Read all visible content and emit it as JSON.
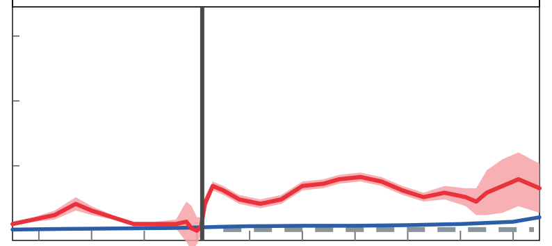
{
  "chart_data": {
    "type": "line",
    "title": "",
    "xlabel": "",
    "ylabel": "",
    "xlim": [
      0,
      100
    ],
    "ylim": [
      0,
      100
    ],
    "grid": false,
    "legend": "none",
    "x_ticks": [
      5,
      15,
      25,
      35,
      45,
      55,
      65,
      75,
      85,
      95
    ],
    "y_ticks": [
      29,
      58,
      87
    ],
    "event_line_x": 36,
    "baseline_y": 0.5,
    "series": [
      {
        "color": "#e8323c",
        "band_color": "#f6a3a8",
        "x": [
          0,
          4,
          8,
          12,
          15,
          19,
          23,
          27,
          31,
          33,
          34,
          35,
          35.8,
          36.5,
          38,
          40,
          43,
          47,
          51,
          55,
          59,
          62,
          66,
          70,
          74,
          78,
          82,
          86,
          88,
          90,
          93,
          96,
          100
        ],
        "y": [
          3,
          5,
          7,
          12,
          9,
          6,
          3,
          3,
          3,
          4,
          1,
          0,
          2,
          12,
          20,
          18,
          14,
          12,
          14,
          20,
          21,
          23,
          24,
          22,
          18,
          15,
          17,
          15,
          13,
          17,
          20,
          23,
          19
        ],
        "spread": [
          1,
          1,
          2,
          3,
          2,
          1,
          1,
          1,
          2,
          9,
          10,
          6,
          4,
          3,
          2,
          2,
          2,
          2,
          2,
          2,
          2,
          2,
          2,
          2,
          2,
          2,
          3,
          4,
          6,
          10,
          12,
          12,
          11
        ]
      },
      {
        "color": "#2b5ea7",
        "x": [
          0,
          10,
          20,
          30,
          36,
          40,
          45,
          55,
          65,
          75,
          85,
          95,
          100
        ],
        "y": [
          0.5,
          0.8,
          1,
          1.2,
          1.5,
          1.8,
          2,
          2.2,
          2.2,
          2.5,
          3,
          4,
          6
        ]
      }
    ]
  }
}
